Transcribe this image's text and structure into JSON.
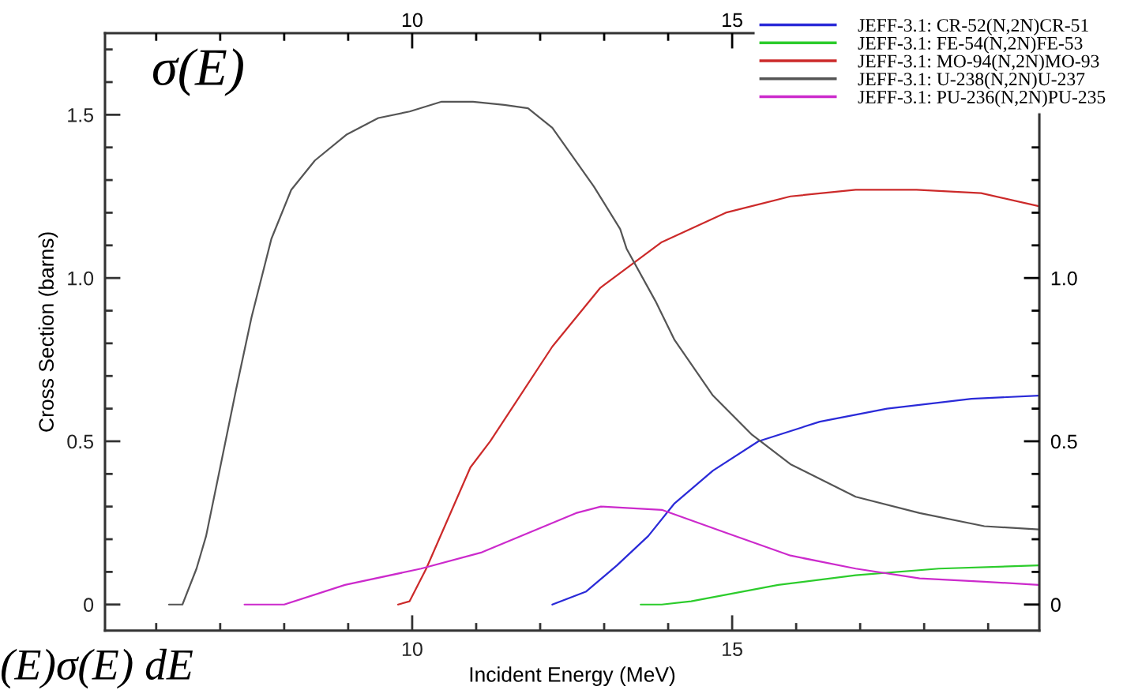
{
  "chart_data": {
    "type": "line",
    "xlabel": "Incident Energy (MeV)",
    "ylabel": "Cross Section (barns)",
    "annotations": [
      "σ(E)",
      "(E)σ(E) dE"
    ],
    "xlim": [
      5.2,
      19.8
    ],
    "ylim": [
      -0.08,
      1.75
    ],
    "x2lim": [
      5.2,
      19.8
    ],
    "y2lim": [
      -0.08,
      1.75
    ],
    "xticks": [
      {
        "value": 6,
        "label": null
      },
      {
        "value": 7,
        "label": null
      },
      {
        "value": 8,
        "label": null
      },
      {
        "value": 9,
        "label": null
      },
      10,
      {
        "value": 11,
        "label": null
      },
      {
        "value": 12,
        "label": null
      },
      {
        "value": 13,
        "label": null
      },
      {
        "value": 14,
        "label": null
      },
      15,
      {
        "value": 16,
        "label": null
      },
      {
        "value": 17,
        "label": null
      },
      {
        "value": 18,
        "label": null
      },
      {
        "value": 19,
        "label": null
      }
    ],
    "x2ticks": [
      {
        "value": 6,
        "label": null
      },
      {
        "value": 7,
        "label": null
      },
      {
        "value": 8,
        "label": null
      },
      {
        "value": 9,
        "label": null
      },
      10,
      {
        "value": 11,
        "label": null
      },
      {
        "value": 12,
        "label": null
      },
      {
        "value": 13,
        "label": null
      },
      {
        "value": 14,
        "label": null
      },
      15,
      {
        "value": 16,
        "label": null
      },
      {
        "value": 17,
        "label": null
      },
      {
        "value": 18,
        "label": null
      },
      {
        "value": 19,
        "label": null
      }
    ],
    "yticks": [
      0,
      {
        "value": 0.1,
        "label": null
      },
      {
        "value": 0.2,
        "label": null
      },
      {
        "value": 0.3,
        "label": null
      },
      {
        "value": 0.4,
        "label": null
      },
      0.5,
      {
        "value": 0.6,
        "label": null
      },
      {
        "value": 0.7,
        "label": null
      },
      {
        "value": 0.8,
        "label": null
      },
      {
        "value": 0.9,
        "label": null
      },
      {
        "value": 1,
        "label": "1.0"
      },
      {
        "value": 1.1,
        "label": null
      },
      {
        "value": 1.2,
        "label": null
      },
      {
        "value": 1.3,
        "label": null
      },
      {
        "value": 1.4,
        "label": null
      },
      1.5,
      {
        "value": 1.6,
        "label": null
      },
      {
        "value": 1.7,
        "label": null
      }
    ],
    "y2ticks": [
      0,
      {
        "value": 0.1,
        "label": null
      },
      {
        "value": 0.2,
        "label": null
      },
      {
        "value": 0.3,
        "label": null
      },
      {
        "value": 0.4,
        "label": null
      },
      0.5,
      {
        "value": 0.6,
        "label": null
      },
      {
        "value": 0.7,
        "label": null
      },
      {
        "value": 0.8,
        "label": null
      },
      {
        "value": 0.9,
        "label": null
      },
      {
        "value": 1,
        "label": "1.0"
      },
      {
        "value": 1.1,
        "label": null
      },
      {
        "value": 1.2,
        "label": null
      },
      {
        "value": 1.3,
        "label": null
      },
      {
        "value": 1.4,
        "label": null
      }
    ],
    "legend": "top right",
    "series": [
      {
        "name": "JEFF-3.1: CR-52(N,2N)CR-51",
        "color": "#2a2ad8",
        "x": [
          12.19,
          12.72,
          13.2,
          13.69,
          14.1,
          14.7,
          15.41,
          16.37,
          17.42,
          18.74,
          19.79
        ],
        "values": [
          0,
          0.04,
          0.12,
          0.21,
          0.31,
          0.41,
          0.5,
          0.56,
          0.6,
          0.63,
          0.64
        ]
      },
      {
        "name": "JEFF-3.1: FE-54(N,2N)FE-53",
        "color": "#2ccc2c",
        "x": [
          13.57,
          13.9,
          14.36,
          15.72,
          16.93,
          18.23,
          19.79
        ],
        "values": [
          0,
          0,
          0.01,
          0.06,
          0.09,
          0.11,
          0.12
        ]
      },
      {
        "name": "JEFF-3.1: MO-94(N,2N)MO-93",
        "color": "#cc2a2a",
        "x": [
          9.78,
          9.96,
          10.22,
          10.91,
          11.22,
          12.19,
          12.94,
          13.9,
          14.9,
          15.91,
          16.93,
          17.88,
          18.89,
          19.79
        ],
        "values": [
          0,
          0.01,
          0.11,
          0.42,
          0.5,
          0.79,
          0.97,
          1.11,
          1.2,
          1.25,
          1.27,
          1.27,
          1.26,
          1.22
        ]
      },
      {
        "name": "JEFF-3.1: U-238(N,2N)U-237",
        "color": "#555555",
        "x": [
          6.2,
          6.41,
          6.63,
          6.78,
          7.0,
          7.25,
          7.49,
          7.8,
          8.11,
          8.48,
          8.98,
          9.47,
          9.96,
          10.46,
          10.95,
          11.44,
          11.81,
          12.19,
          12.84,
          13.25,
          13.35,
          13.8,
          14.1,
          14.7,
          15.31,
          15.91,
          16.93,
          17.93,
          18.94,
          19.79
        ],
        "values": [
          0,
          0,
          0.11,
          0.21,
          0.42,
          0.66,
          0.88,
          1.12,
          1.27,
          1.36,
          1.44,
          1.49,
          1.51,
          1.54,
          1.54,
          1.53,
          1.52,
          1.46,
          1.28,
          1.15,
          1.09,
          0.93,
          0.81,
          0.64,
          0.52,
          0.43,
          0.33,
          0.28,
          0.24,
          0.23
        ]
      },
      {
        "name": "JEFF-3.1: PU-236(N,2N)PU-235",
        "color": "#cc2acc",
        "x": [
          7.38,
          8.0,
          8.95,
          10.14,
          11.09,
          12.56,
          12.95,
          13.9,
          14.9,
          15.91,
          16.93,
          17.93,
          18.94,
          19.79
        ],
        "values": [
          0,
          0,
          0.06,
          0.11,
          0.16,
          0.28,
          0.3,
          0.29,
          0.22,
          0.15,
          0.11,
          0.08,
          0.07,
          0.06
        ]
      }
    ]
  }
}
